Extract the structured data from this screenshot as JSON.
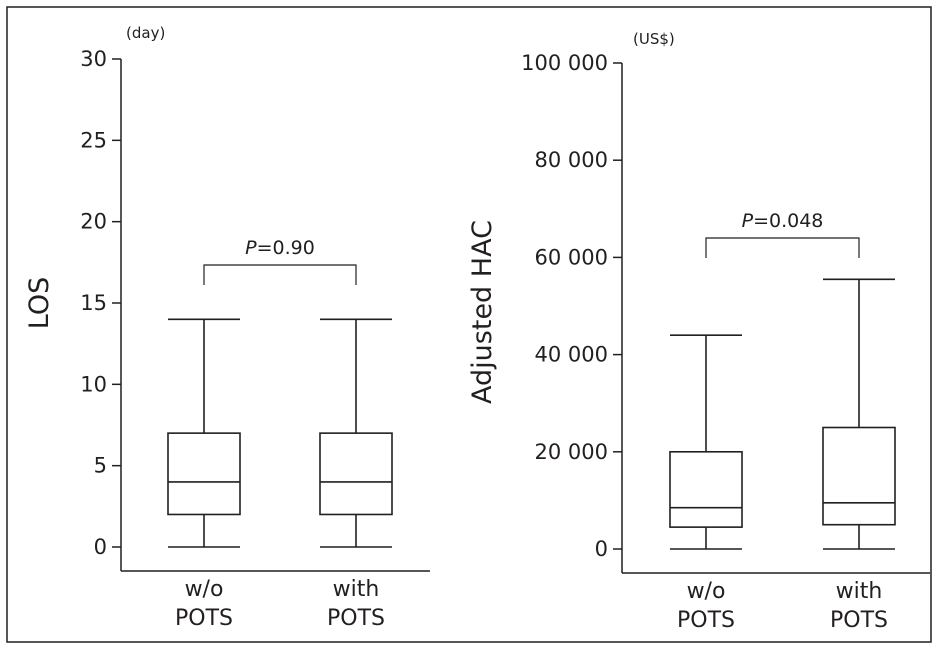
{
  "chart_data": [
    {
      "type": "box",
      "ylabel": "LOS",
      "unit": "(day)",
      "ylim": [
        0,
        30
      ],
      "yticks": [
        0,
        5,
        10,
        15,
        20,
        25,
        30
      ],
      "ytick_labels": [
        "0",
        "5",
        "10",
        "15",
        "20",
        "25",
        "30"
      ],
      "categories": [
        [
          "w/o",
          "POTS"
        ],
        [
          "with",
          "POTS"
        ]
      ],
      "boxes": [
        {
          "min": 0,
          "q1": 2,
          "median": 4,
          "q3": 7,
          "max": 14
        },
        {
          "min": 0,
          "q1": 2,
          "median": 4,
          "q3": 7,
          "max": 14
        }
      ],
      "annotation": {
        "p_label": "P",
        "p_value": "=0.90"
      }
    },
    {
      "type": "box",
      "ylabel": "Adjusted HAC",
      "unit": "(US$)",
      "ylim": [
        0,
        100000
      ],
      "yticks": [
        0,
        20000,
        40000,
        60000,
        80000,
        100000
      ],
      "ytick_labels": [
        "0",
        "20 000",
        "40 000",
        "60 000",
        "80 000",
        "100 000"
      ],
      "categories": [
        [
          "w/o",
          "POTS"
        ],
        [
          "with",
          "POTS"
        ]
      ],
      "boxes": [
        {
          "min": 0,
          "q1": 4500,
          "median": 8500,
          "q3": 20000,
          "max": 44000
        },
        {
          "min": 0,
          "q1": 5000,
          "median": 9500,
          "q3": 25000,
          "max": 55500
        }
      ],
      "annotation": {
        "p_label": "P",
        "p_value": "=0.048"
      }
    }
  ]
}
